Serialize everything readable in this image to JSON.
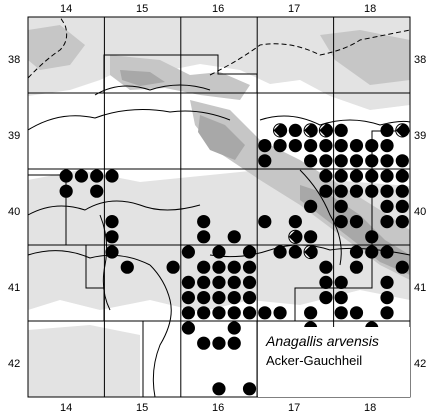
{
  "colors": {
    "background": "#ffffff",
    "terrain_light": "#e3e3e3",
    "terrain_mid": "#c6c6c6",
    "terrain_dark": "#a8a8a8",
    "grid": "#000000",
    "dot": "#000000"
  },
  "legend": {
    "scientific_name": "Anagallis arvensis",
    "common_name": "Acker-Gauchheil"
  },
  "axes": {
    "top": [
      "14",
      "15",
      "16",
      "17",
      "18"
    ],
    "bottom": [
      "14",
      "15",
      "16",
      "17",
      "18"
    ],
    "left": [
      "38",
      "39",
      "40",
      "41",
      "42"
    ],
    "right": [
      "38",
      "39",
      "40",
      "41",
      "42"
    ]
  },
  "occurrences": {
    "full": [
      [
        "17",
        "38.9"
      ],
      [
        "20",
        "38.9"
      ],
      [
        "23",
        "38.9"
      ],
      [
        "25",
        "38.9"
      ],
      [
        "28",
        "38.9"
      ],
      [
        "35",
        "38.9"
      ],
      [
        "15",
        "39.1"
      ],
      [
        "16",
        "39.1"
      ],
      [
        "17",
        "39.1"
      ],
      [
        "18",
        "39.1"
      ],
      [
        "19",
        "39.1"
      ],
      [
        "20",
        "39.1"
      ],
      [
        "21",
        "39.1"
      ],
      [
        "22",
        "39.1"
      ],
      [
        "23",
        "39.1"
      ],
      [
        "25",
        "39.1"
      ],
      [
        "27",
        "39.1"
      ],
      [
        "28",
        "39.1"
      ],
      [
        "34",
        "39.1"
      ],
      [
        "36",
        "39.1"
      ],
      [
        "15",
        "39.3"
      ],
      [
        "18",
        "39.3"
      ],
      [
        "19",
        "39.3"
      ],
      [
        "20",
        "39.3"
      ],
      [
        "21",
        "39.3"
      ],
      [
        "22",
        "39.3"
      ],
      [
        "23",
        "39.3"
      ],
      [
        "24",
        "39.3"
      ],
      [
        "25",
        "39.3"
      ],
      [
        "28",
        "39.3"
      ],
      [
        "30",
        "39.3"
      ],
      [
        "34",
        "39.3"
      ],
      [
        "2",
        "39.5"
      ],
      [
        "3",
        "39.5"
      ],
      [
        "4",
        "39.5"
      ],
      [
        "5",
        "39.5"
      ],
      [
        "19",
        "39.5"
      ],
      [
        "20",
        "39.5"
      ],
      [
        "21",
        "39.5"
      ],
      [
        "22",
        "39.5"
      ],
      [
        "23",
        "39.5"
      ],
      [
        "24",
        "39.5"
      ],
      [
        "25",
        "39.5"
      ],
      [
        "27",
        "39.5"
      ],
      [
        "28",
        "39.5"
      ],
      [
        "29",
        "39.5"
      ],
      [
        "30",
        "39.5"
      ],
      [
        "2",
        "39.7"
      ],
      [
        "4",
        "39.7"
      ],
      [
        "19",
        "39.7"
      ],
      [
        "20",
        "39.7"
      ],
      [
        "21",
        "39.7"
      ],
      [
        "22",
        "39.7"
      ],
      [
        "23",
        "39.7"
      ],
      [
        "24",
        "39.7"
      ],
      [
        "25",
        "39.7"
      ],
      [
        "26",
        "39.7"
      ],
      [
        "27",
        "39.7"
      ],
      [
        "28",
        "39.7"
      ],
      [
        "29",
        "39.7"
      ],
      [
        "18",
        "39.9"
      ],
      [
        "20",
        "39.9"
      ],
      [
        "23",
        "39.9"
      ],
      [
        "24",
        "39.9"
      ],
      [
        "25",
        "39.9"
      ],
      [
        "26",
        "39.9"
      ],
      [
        "27",
        "39.9"
      ],
      [
        "28",
        "39.9"
      ],
      [
        "29",
        "39.9"
      ],
      [
        "30",
        "39.9"
      ],
      [
        "31",
        "39.9"
      ],
      [
        "32",
        "39.9"
      ],
      [
        "5",
        "40.1"
      ],
      [
        "11",
        "40.1"
      ],
      [
        "15",
        "40.1"
      ],
      [
        "17",
        "40.1"
      ],
      [
        "20",
        "40.1"
      ],
      [
        "21",
        "40.1"
      ],
      [
        "23",
        "40.1"
      ],
      [
        "24",
        "40.1"
      ],
      [
        "26",
        "40.1"
      ],
      [
        "29",
        "40.1"
      ],
      [
        "30",
        "40.1"
      ],
      [
        "31",
        "40.1"
      ],
      [
        "32",
        "40.1"
      ],
      [
        "5",
        "40.3"
      ],
      [
        "11",
        "40.3"
      ],
      [
        "13",
        "40.3"
      ],
      [
        "18",
        "40.3"
      ],
      [
        "22",
        "40.3"
      ],
      [
        "27",
        "40.3"
      ],
      [
        "30",
        "40.3"
      ],
      [
        "31",
        "40.3"
      ],
      [
        "33",
        "40.3"
      ],
      [
        "5",
        "40.5"
      ],
      [
        "10",
        "40.5"
      ],
      [
        "12",
        "40.5"
      ],
      [
        "14",
        "40.5"
      ],
      [
        "16",
        "40.5"
      ],
      [
        "17",
        "40.5"
      ],
      [
        "18",
        "40.5"
      ],
      [
        "21",
        "40.5"
      ],
      [
        "22",
        "40.5"
      ],
      [
        "23",
        "40.5"
      ],
      [
        "6",
        "40.7"
      ],
      [
        "9",
        "40.7"
      ],
      [
        "11",
        "40.7"
      ],
      [
        "12",
        "40.7"
      ],
      [
        "13",
        "40.7"
      ],
      [
        "14",
        "40.7"
      ],
      [
        "19",
        "40.7"
      ],
      [
        "21",
        "40.7"
      ],
      [
        "24",
        "40.7"
      ],
      [
        "25",
        "40.7"
      ],
      [
        "27",
        "40.7"
      ],
      [
        "31",
        "40.7"
      ],
      [
        "33",
        "40.7"
      ],
      [
        "34",
        "40.7"
      ],
      [
        "10",
        "40.9"
      ],
      [
        "11",
        "40.9"
      ],
      [
        "12",
        "40.9"
      ],
      [
        "13",
        "40.9"
      ],
      [
        "14",
        "40.9"
      ],
      [
        "19",
        "40.9"
      ],
      [
        "20",
        "40.9"
      ],
      [
        "23",
        "40.9"
      ],
      [
        "26",
        "40.9"
      ],
      [
        "30",
        "40.9"
      ],
      [
        "32",
        "40.9"
      ],
      [
        "33",
        "40.9"
      ],
      [
        "34",
        "40.9"
      ],
      [
        "10",
        "41.1"
      ],
      [
        "11",
        "41.1"
      ],
      [
        "12",
        "41.1"
      ],
      [
        "13",
        "41.1"
      ],
      [
        "14",
        "41.1"
      ],
      [
        "19",
        "41.1"
      ],
      [
        "20",
        "41.1"
      ],
      [
        "23",
        "41.1"
      ],
      [
        "25",
        "41.1"
      ],
      [
        "10",
        "41.3"
      ],
      [
        "11",
        "41.3"
      ],
      [
        "12",
        "41.3"
      ],
      [
        "13",
        "41.3"
      ],
      [
        "14",
        "41.3"
      ],
      [
        "15",
        "41.3"
      ],
      [
        "16",
        "41.3"
      ],
      [
        "18",
        "41.3"
      ],
      [
        "20",
        "41.3"
      ],
      [
        "21",
        "41.3"
      ],
      [
        "23",
        "41.3"
      ],
      [
        "25",
        "41.3"
      ],
      [
        "26",
        "41.3"
      ],
      [
        "27",
        "41.3"
      ],
      [
        "10",
        "41.5"
      ],
      [
        "13",
        "41.5"
      ],
      [
        "18",
        "41.5"
      ],
      [
        "22",
        "41.5"
      ],
      [
        "26",
        "41.5"
      ],
      [
        "11",
        "41.7"
      ],
      [
        "12",
        "41.7"
      ],
      [
        "13",
        "41.7"
      ],
      [
        "15",
        "41.7"
      ],
      [
        "19",
        "41.7"
      ],
      [
        "20",
        "41.7"
      ],
      [
        "16",
        "41.9"
      ],
      [
        "17",
        "41.9"
      ],
      [
        "24",
        "41.9"
      ],
      [
        "17",
        "42.1"
      ],
      [
        "24",
        "42.1"
      ],
      [
        "12",
        "42.3"
      ],
      [
        "14",
        "42.3"
      ],
      [
        "16",
        "42.3"
      ],
      [
        "17",
        "42.3"
      ],
      [
        "21",
        "42.3"
      ],
      [
        "22",
        "42.3"
      ]
    ],
    "half": [
      [
        "16",
        "38.9"
      ],
      [
        "18",
        "38.9"
      ],
      [
        "19",
        "38.9"
      ],
      [
        "24",
        "38.9"
      ],
      [
        "26",
        "39.5"
      ],
      [
        "17",
        "40.3"
      ],
      [
        "18",
        "40.5"
      ],
      [
        "30",
        "40.3"
      ],
      [
        "34",
        "40.5"
      ],
      [
        "19",
        "42.5"
      ]
    ]
  }
}
